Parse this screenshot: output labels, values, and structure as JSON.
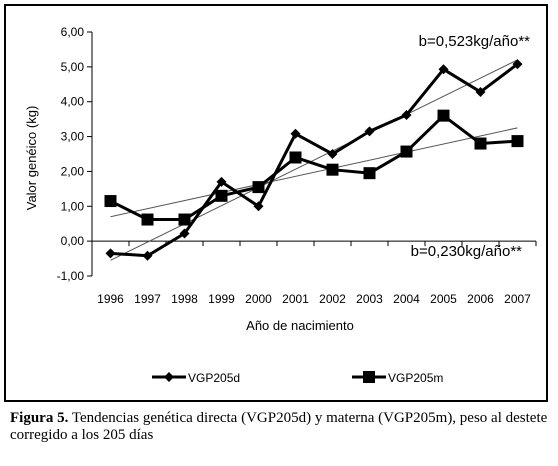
{
  "chart_data": {
    "type": "line",
    "xlabel": "Año de nacimiento",
    "ylabel": "Valor genéico (kg)",
    "categories": [
      "1996",
      "1997",
      "1998",
      "1999",
      "2000",
      "2001",
      "2002",
      "2003",
      "2004",
      "2005",
      "2006",
      "2007"
    ],
    "ylim": [
      -1,
      6
    ],
    "yticks": [
      "-1,00",
      "0,00",
      "1,00",
      "2,00",
      "3,00",
      "4,00",
      "5,00",
      "6,00"
    ],
    "grid": false,
    "legend_position": "bottom",
    "series": [
      {
        "name": "VGP205d",
        "marker": "diamond",
        "values": [
          -0.35,
          -0.42,
          0.22,
          1.7,
          1.0,
          3.08,
          2.5,
          3.15,
          3.62,
          4.93,
          4.28,
          5.08
        ]
      },
      {
        "name": "VGP205m",
        "marker": "square",
        "values": [
          1.15,
          0.62,
          0.62,
          1.3,
          1.55,
          2.4,
          2.05,
          1.95,
          2.57,
          3.6,
          2.8,
          2.87
        ]
      }
    ],
    "trendlines": [
      {
        "series": "VGP205d",
        "start": -0.55,
        "end": 5.2
      },
      {
        "series": "VGP205m",
        "start": 0.7,
        "end": 3.25
      }
    ],
    "annotations": [
      "b=0,523kg/año**",
      "b=0,230kg/año**"
    ]
  },
  "caption": {
    "label": "Figura 5.",
    "text": " Tendencias genética directa (VGP205d) y materna (VGP205m), peso al destete corregido a los 205 días"
  }
}
